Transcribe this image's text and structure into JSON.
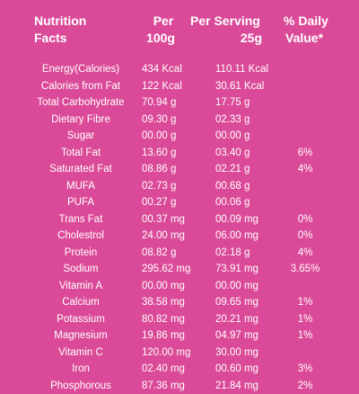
{
  "header": {
    "title_line1": "Nutrition",
    "title_line2": "Facts",
    "per_line1": "Per",
    "per_line2": "100g",
    "serving_line1": "Per Serving",
    "serving_line2": "25g",
    "dv_line1": "% Daily",
    "dv_line2": "Value*"
  },
  "rows": [
    {
      "name": "Energy(Calories)",
      "per100": "434 Kcal",
      "serving": "110.11 Kcal",
      "dv": ""
    },
    {
      "name": "Calories from Fat",
      "per100": "122 Kcal",
      "serving": "30.61 Kcal",
      "dv": ""
    },
    {
      "name": "Total Carbohydrate",
      "per100": "70.94 g",
      "serving": "17.75 g",
      "dv": ""
    },
    {
      "name": "Dietary Fibre",
      "per100": "09.30 g",
      "serving": "02.33 g",
      "dv": ""
    },
    {
      "name": "Sugar",
      "per100": "00.00 g",
      "serving": "00.00 g",
      "dv": ""
    },
    {
      "name": "Total Fat",
      "per100": "13.60 g",
      "serving": "03.40 g",
      "dv": "6%"
    },
    {
      "name": "Saturated Fat",
      "per100": "08.86 g",
      "serving": "02.21 g",
      "dv": "4%"
    },
    {
      "name": "MUFA",
      "per100": "02.73 g",
      "serving": "00.68 g",
      "dv": ""
    },
    {
      "name": "PUFA",
      "per100": "00.27 g",
      "serving": "00.06 g",
      "dv": ""
    },
    {
      "name": "Trans Fat",
      "per100": "00.37 mg",
      "serving": "00.09 mg",
      "dv": "0%"
    },
    {
      "name": "Cholestrol",
      "per100": "24.00 mg",
      "serving": "06.00 mg",
      "dv": "0%"
    },
    {
      "name": "Protein",
      "per100": "08.82 g",
      "serving": "02.18 g",
      "dv": "4%"
    },
    {
      "name": "Sodium",
      "per100": "295.62 mg",
      "serving": "73.91 mg",
      "dv": "3.65%"
    },
    {
      "name": "Vitamin A",
      "per100": "00.00 mg",
      "serving": "00.00 mg",
      "dv": ""
    },
    {
      "name": "Calcium",
      "per100": "38.58 mg",
      "serving": "09.65 mg",
      "dv": "1%"
    },
    {
      "name": "Potassium",
      "per100": "80.82 mg",
      "serving": "20.21 mg",
      "dv": "1%"
    },
    {
      "name": "Magnesium",
      "per100": "19.86 mg",
      "serving": "04.97 mg",
      "dv": "1%"
    },
    {
      "name": "Vitamin C",
      "per100": "120.00 mg",
      "serving": "30.00 mg",
      "dv": ""
    },
    {
      "name": "Iron",
      "per100": "02.40 mg",
      "serving": "00.60 mg",
      "dv": "3%"
    },
    {
      "name": "Phosphorous",
      "per100": "87.36 mg",
      "serving": "21.84 mg",
      "dv": "2%"
    }
  ],
  "colors": {
    "background": "#db4a98",
    "text": "#ffffff"
  }
}
